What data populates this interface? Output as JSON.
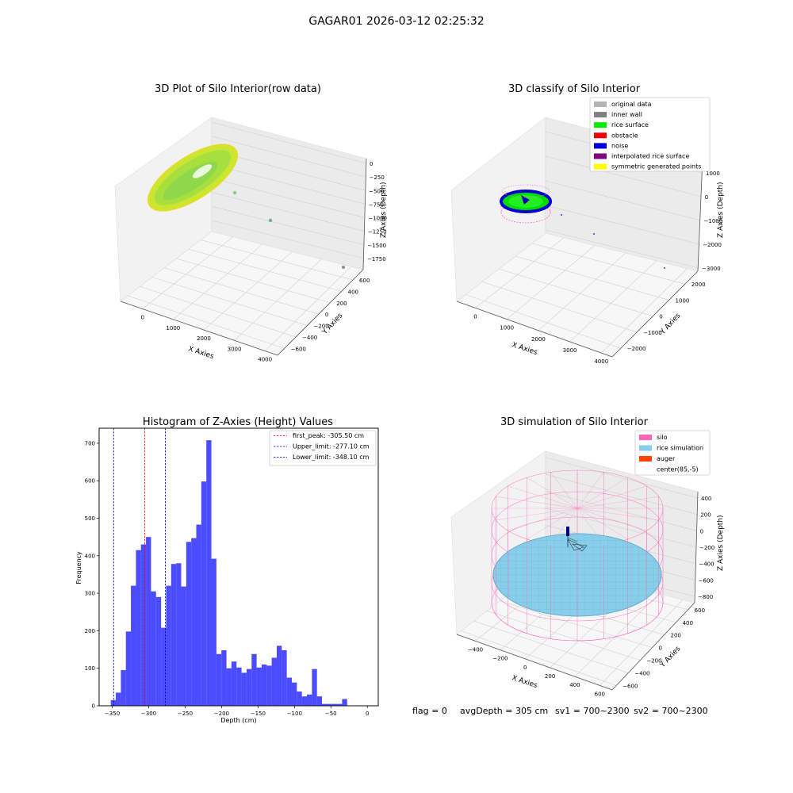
{
  "suptitle": "GAGAR01 2026-03-12 02:25:32",
  "footer": {
    "flag": "flag = 0",
    "avg_depth": "avgDepth = 305 cm",
    "sv1": "sv1 = 700~2300",
    "sv2": "sv2 = 700~2300"
  },
  "panel_raw": {
    "title": "3D Plot of Silo Interior(row data)",
    "xlabel": "X Axies",
    "ylabel": "Y Axies",
    "zlabel": "Z Axies (Depth)",
    "x_ticks": [
      "0",
      "1000",
      "2000",
      "3000",
      "4000"
    ],
    "y_ticks": [
      "−600",
      "−400",
      "−200",
      "0",
      "200",
      "400",
      "600"
    ],
    "z_ticks": [
      "0",
      "−250",
      "−500",
      "−750",
      "−1000",
      "−1250",
      "−1500",
      "−1750"
    ],
    "colors": {
      "surface_main": "#a8e03a",
      "surface_edge": "#d6ea2a",
      "outlier": "#8cc88c"
    }
  },
  "panel_class": {
    "title": "3D classify of Silo Interior",
    "xlabel": "X Axies",
    "ylabel": "Y Axies",
    "zlabel": "Z Axies (Depth)",
    "x_ticks": [
      "0",
      "1000",
      "2000",
      "3000",
      "4000"
    ],
    "y_ticks": [
      "−2000",
      "−1000",
      "0",
      "1000",
      "2000"
    ],
    "z_ticks": [
      "1000",
      "0",
      "−1000",
      "−2000",
      "−3000"
    ],
    "legend": [
      {
        "label": "original data",
        "color": "#b3b3b3"
      },
      {
        "label": "inner wall",
        "color": "#808080"
      },
      {
        "label": "rice surface",
        "color": "#00ee00"
      },
      {
        "label": "obstacle",
        "color": "#ee0000"
      },
      {
        "label": "noise",
        "color": "#0000dd"
      },
      {
        "label": "interpolated rice surface",
        "color": "#800080"
      },
      {
        "label": "symmetric generated points",
        "color": "#ffff00"
      }
    ]
  },
  "panel_sim": {
    "title": "3D simulation of Silo Interior",
    "xlabel": "X Axies",
    "ylabel": "Y Axies",
    "zlabel": "Z Axies (Depth)",
    "x_ticks": [
      "−400",
      "−200",
      "0",
      "200",
      "400",
      "600"
    ],
    "y_ticks": [
      "−600",
      "−400",
      "−200",
      "0",
      "200",
      "400",
      "600"
    ],
    "z_ticks": [
      "400",
      "200",
      "0",
      "−200",
      "−400",
      "−600",
      "−800"
    ],
    "legend": [
      {
        "label": "silo",
        "color": "#ff69b4"
      },
      {
        "label": "rice simulation",
        "color": "#87ceeb"
      },
      {
        "label": "auger",
        "color": "#ff4500"
      },
      {
        "label": "center(85,-5)",
        "color": ""
      }
    ]
  },
  "chart_data": {
    "type": "bar",
    "title": "Histogram of Z-Axies (Height) Values",
    "xlabel": "Depth (cm)",
    "ylabel": "Frequency",
    "xlim": [
      -368,
      15
    ],
    "ylim": [
      0,
      740
    ],
    "bin_width": 6.9,
    "bin_start": -352,
    "values": [
      15,
      35,
      95,
      198,
      320,
      415,
      430,
      450,
      305,
      290,
      208,
      320,
      378,
      380,
      318,
      437,
      447,
      483,
      598,
      708,
      392,
      138,
      148,
      100,
      118,
      102,
      88,
      98,
      138,
      102,
      110,
      107,
      128,
      160,
      148,
      75,
      62,
      38,
      25,
      30,
      98,
      25,
      5,
      5,
      5,
      5,
      18
    ],
    "x_ticks": [
      -350,
      -300,
      -250,
      -200,
      -150,
      -100,
      -50,
      0
    ],
    "y_ticks": [
      0,
      100,
      200,
      300,
      400,
      500,
      600,
      700
    ],
    "bar_color": "#0000ff",
    "vlines": [
      {
        "label": "first_peak: -305.50 cm",
        "value": -305.5,
        "color": "#ff0000"
      },
      {
        "label": "Upper_limit: -277.10 cm",
        "value": -277.1,
        "color": "#0000aa"
      },
      {
        "label": "Lower_limit: -348.10 cm",
        "value": -348.1,
        "color": "#0000aa"
      }
    ],
    "legend_position": "top-right"
  }
}
